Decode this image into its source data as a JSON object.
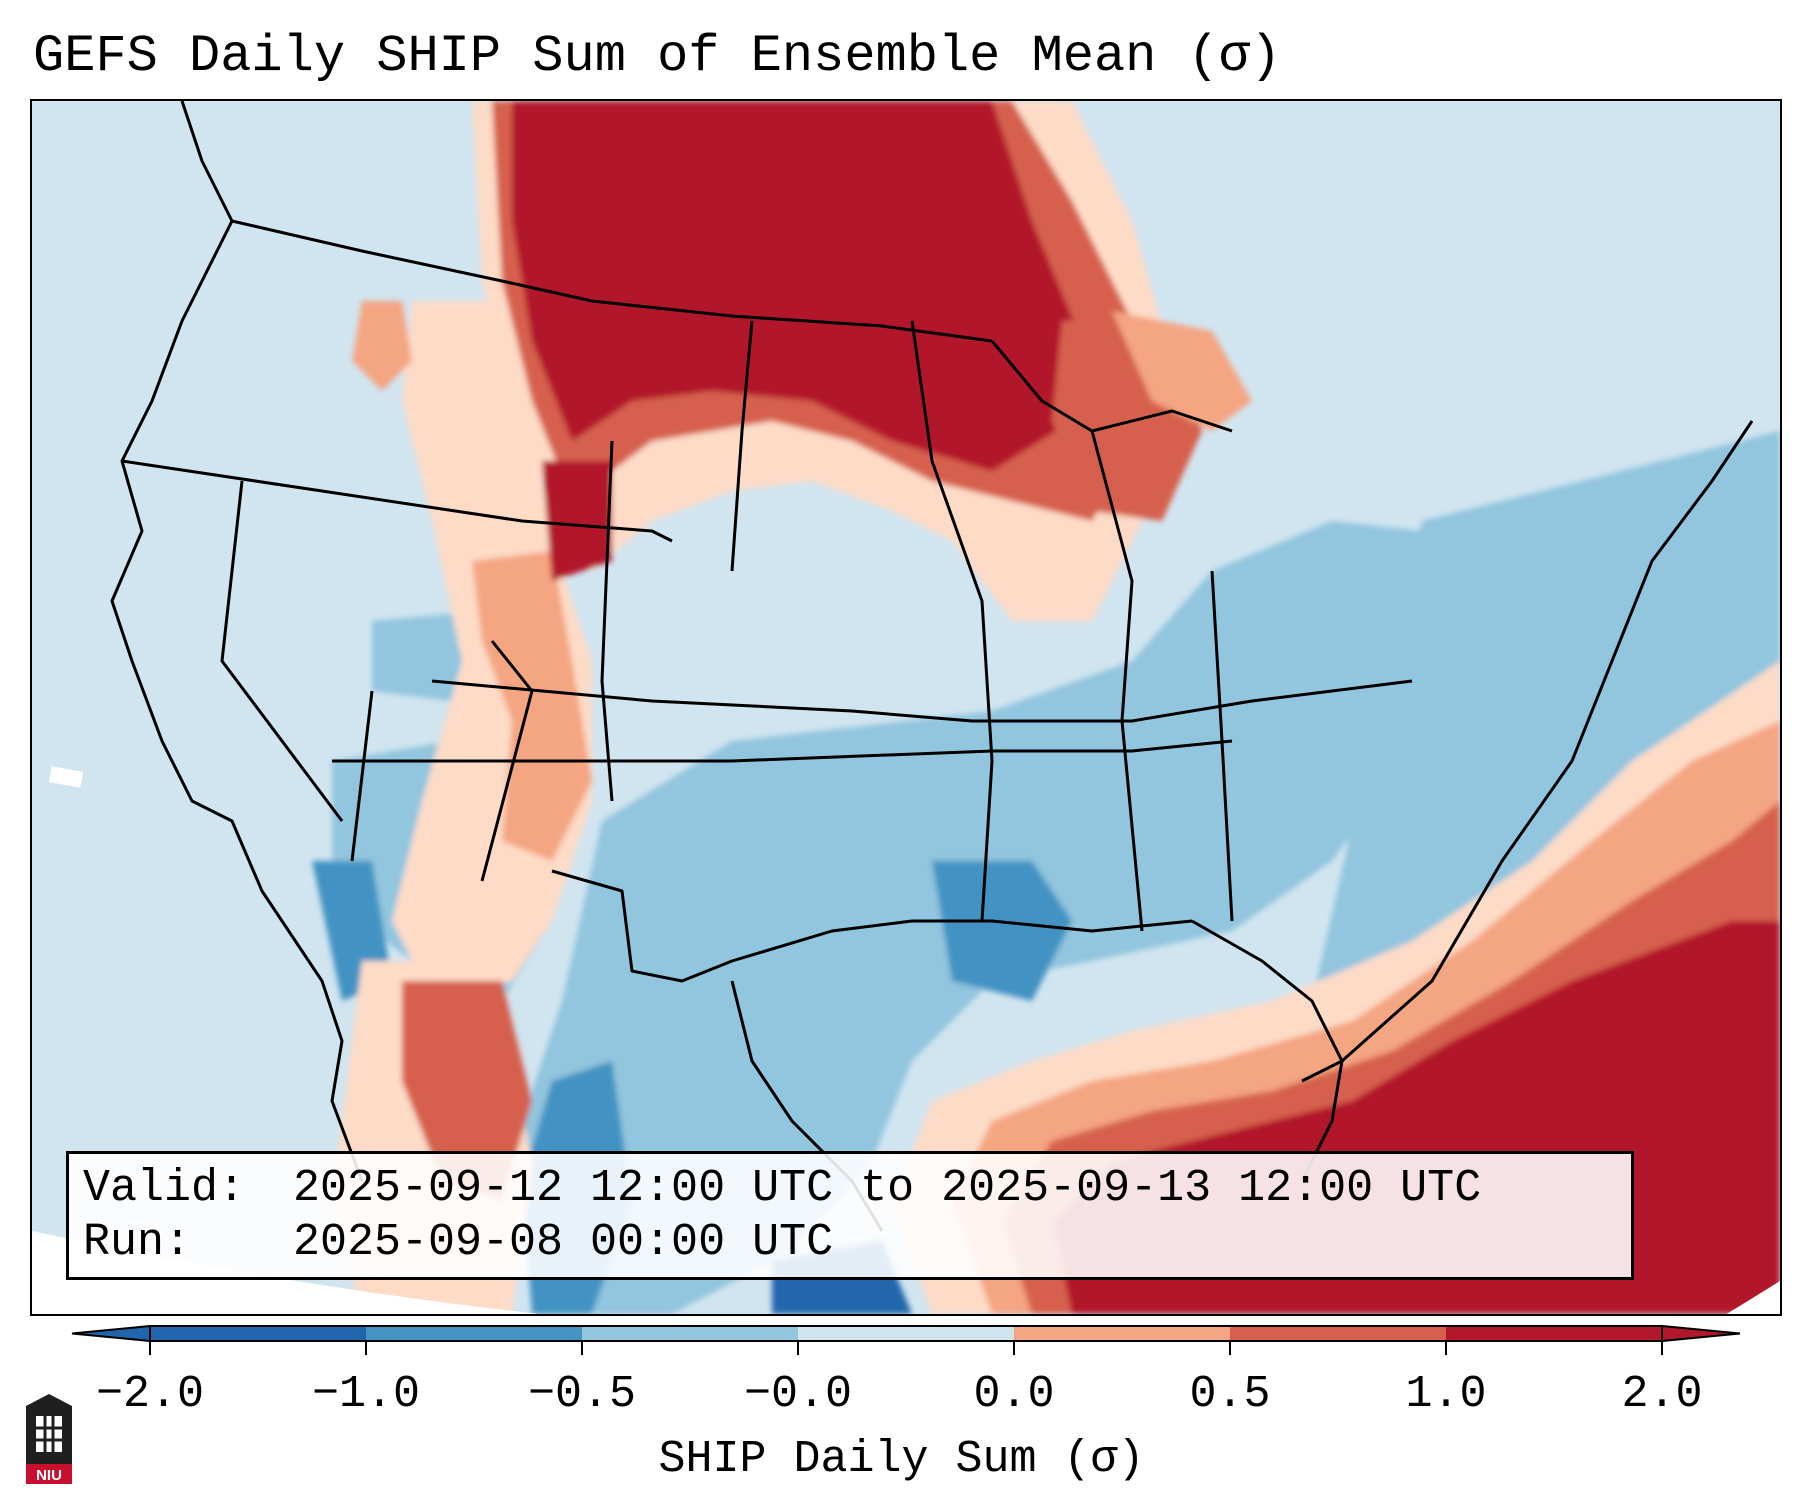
{
  "title": "GEFS Daily SHIP Sum of Ensemble Mean (σ)",
  "info": {
    "valid_key": "Valid:",
    "valid_value": "2025-09-12 12:00 UTC to 2025-09-13 12:00 UTC",
    "run_key": "Run:",
    "run_value": "2025-09-08 00:00 UTC"
  },
  "colorbar": {
    "label": "SHIP Daily Sum (σ)",
    "ticks": [
      "−2.0",
      "−1.0",
      "−0.5",
      "−0.0",
      "0.0",
      "0.5",
      "1.0",
      "2.0"
    ],
    "colors": [
      "#2166ac",
      "#4393c3",
      "#92c5de",
      "#d1e5f0",
      "#fddbc7",
      "#f4a582",
      "#d6604d",
      "#b2182b"
    ],
    "under_color": "#2166ac",
    "over_color": "#b2182b"
  },
  "map": {
    "region": "CONUS",
    "background_color": "#d1e5f0",
    "features": {
      "northern_plains": "2.0",
      "upper_midwest": "1.0",
      "southeast": "-0.5",
      "gulf_of_mexico": "2.0",
      "western_atlantic": "1.0"
    }
  },
  "logo": {
    "text": "NIU",
    "name": "Northern Illinois University"
  }
}
